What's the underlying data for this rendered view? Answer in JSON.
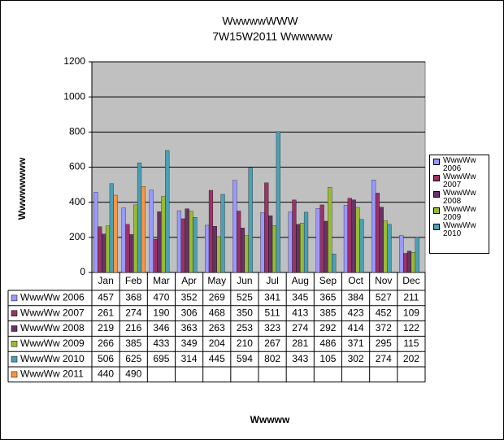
{
  "chart_data": {
    "type": "bar",
    "title": "WwwwwWWW",
    "subtitle": "7W15W2011 Wwwwww",
    "y_label": "Wwwwwwww",
    "x_label": "Wwwww",
    "categories": [
      "Jan",
      "Feb",
      "Mar",
      "Apr",
      "May",
      "Jun",
      "Jul",
      "Aug",
      "Sep",
      "Oct",
      "Nov",
      "Dec"
    ],
    "series": [
      {
        "name": "WwwWw 2006",
        "color": "#9999ff",
        "values": [
          457,
          368,
          470,
          352,
          269,
          525,
          341,
          345,
          365,
          384,
          527,
          211
        ]
      },
      {
        "name": "WwwWw 2007",
        "color": "#993366",
        "values": [
          261,
          274,
          190,
          306,
          468,
          350,
          511,
          413,
          385,
          423,
          452,
          109
        ]
      },
      {
        "name": "WwwWw 2008",
        "color": "#663366",
        "values": [
          219,
          216,
          346,
          363,
          263,
          253,
          323,
          274,
          292,
          414,
          372,
          122
        ]
      },
      {
        "name": "WwwWw 2009",
        "color": "#99bb33",
        "values": [
          266,
          385,
          433,
          349,
          204,
          210,
          267,
          281,
          486,
          371,
          295,
          115
        ]
      },
      {
        "name": "WwwWw 2010",
        "color": "#4aa0b4",
        "values": [
          506,
          625,
          695,
          314,
          445,
          594,
          802,
          343,
          105,
          302,
          274,
          202
        ]
      },
      {
        "name": "WwwWw 2011",
        "color": "#f79646",
        "values": [
          440,
          490,
          null,
          null,
          null,
          null,
          null,
          null,
          null,
          null,
          null,
          null
        ]
      }
    ],
    "ylim": [
      0,
      1200
    ],
    "yticks": [
      0,
      200,
      400,
      600,
      800,
      1000,
      1200
    ],
    "grid": true,
    "legend": "right"
  }
}
